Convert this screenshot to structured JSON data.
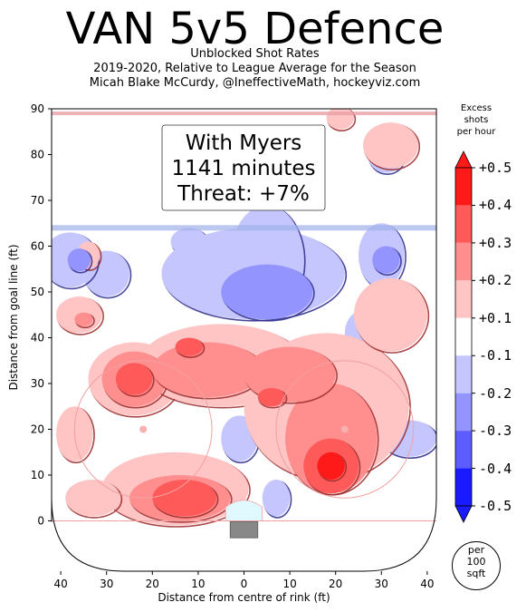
{
  "header": {
    "title": "VAN 5v5 Defence",
    "subtitle_lines": [
      "Unblocked Shot Rates",
      "2019-2020, Relative to League Average for the Season",
      "Micah Blake McCurdy, @IneffectiveMath, hockeyviz.com"
    ]
  },
  "chart_data": {
    "type": "heatmap",
    "xlabel": "Distance from centre of rink (ft)",
    "ylabel": "Distance from goal line (ft)",
    "xlim": [
      42,
      -42
    ],
    "ylim": [
      -11,
      90
    ],
    "x_ticks": [
      40,
      30,
      20,
      10,
      0,
      10,
      20,
      30,
      40
    ],
    "y_ticks": [
      0,
      10,
      20,
      30,
      40,
      50,
      60,
      70,
      80,
      90
    ],
    "annotation": {
      "line1": "With Myers",
      "line2": "1141 minutes",
      "line3": "Threat: +7%"
    },
    "colorbar": {
      "title_lines": [
        "Excess",
        "shots",
        "per hour"
      ],
      "labels": [
        "+0.5",
        "+0.4",
        "+0.3",
        "+0.2",
        "+0.1",
        "-0.1",
        "-0.2",
        "-0.3",
        "-0.4",
        "-0.5"
      ],
      "colors": [
        "#ff1a1a",
        "#ff5a5a",
        "#ff8f8f",
        "#ffc4c4",
        "#ffffff",
        "#c6c6ff",
        "#9494ff",
        "#5c5cff",
        "#1a1aff"
      ],
      "unit_lines": [
        "per",
        "100",
        "sqft"
      ]
    },
    "regions": [
      {
        "level": 0.2,
        "cx": 24,
        "cy": 31,
        "rx": 10,
        "ry": 8
      },
      {
        "level": 0.3,
        "cx": 24,
        "cy": 31,
        "rx": 7,
        "ry": 6
      },
      {
        "level": 0.4,
        "cx": 24,
        "cy": 31,
        "rx": 4,
        "ry": 3.5
      },
      {
        "level": 0.2,
        "cx": 5,
        "cy": 34,
        "rx": 18,
        "ry": 9
      },
      {
        "level": 0.3,
        "cx": 8,
        "cy": 33,
        "rx": 12,
        "ry": 6
      },
      {
        "level": 0.4,
        "cx": 12,
        "cy": 38,
        "rx": 3,
        "ry": 2
      },
      {
        "level": 0.2,
        "cx": -18,
        "cy": 25,
        "rx": 18,
        "ry": 16
      },
      {
        "level": 0.3,
        "cx": -19,
        "cy": 18,
        "rx": 10,
        "ry": 12
      },
      {
        "level": 0.3,
        "cx": -10,
        "cy": 32,
        "rx": 10,
        "ry": 6
      },
      {
        "level": 0.4,
        "cx": -19,
        "cy": 12,
        "rx": 6,
        "ry": 6
      },
      {
        "level": 0.5,
        "cx": -19,
        "cy": 12,
        "rx": 3,
        "ry": 3
      },
      {
        "level": 0.4,
        "cx": -6,
        "cy": 27,
        "rx": 3,
        "ry": 2
      },
      {
        "level": 0.2,
        "cx": 15,
        "cy": 7,
        "rx": 16,
        "ry": 8
      },
      {
        "level": 0.3,
        "cx": 14,
        "cy": 5,
        "rx": 11,
        "ry": 5
      },
      {
        "level": 0.4,
        "cx": 13,
        "cy": 5,
        "rx": 7,
        "ry": 4
      },
      {
        "level": 0.2,
        "cx": 33,
        "cy": 5,
        "rx": 6,
        "ry": 4
      },
      {
        "level": 0.2,
        "cx": 37,
        "cy": 19,
        "rx": 4,
        "ry": 6
      },
      {
        "level": 0.2,
        "cx": 36,
        "cy": 45,
        "rx": 5,
        "ry": 4
      },
      {
        "level": 0.3,
        "cx": 35,
        "cy": 44,
        "rx": 2,
        "ry": 1.5
      },
      {
        "level": 0.2,
        "cx": 34,
        "cy": 58,
        "rx": 2.5,
        "ry": 3
      },
      {
        "level": 0.2,
        "cx": -32,
        "cy": 45,
        "rx": 8,
        "ry": 8
      },
      {
        "level": 0.2,
        "cx": -32,
        "cy": 82,
        "rx": 6,
        "ry": 5
      },
      {
        "level": 0.2,
        "cx": -21,
        "cy": 88,
        "rx": 3,
        "ry": 2.5
      },
      {
        "level": -0.1,
        "cx": 30,
        "cy": 54,
        "rx": 5,
        "ry": 5
      },
      {
        "level": -0.1,
        "cx": 12,
        "cy": 61,
        "rx": 4,
        "ry": 3
      },
      {
        "level": -0.1,
        "cx": -2,
        "cy": 54,
        "rx": 20,
        "ry": 10
      },
      {
        "level": -0.2,
        "cx": -5,
        "cy": 50,
        "rx": 10,
        "ry": 6
      },
      {
        "level": -0.1,
        "cx": -5,
        "cy": 57,
        "rx": 8,
        "ry": 12
      },
      {
        "level": -0.1,
        "cx": -30,
        "cy": 58,
        "rx": 5,
        "ry": 7
      },
      {
        "level": -0.2,
        "cx": -31,
        "cy": 57,
        "rx": 3,
        "ry": 3
      },
      {
        "level": -0.1,
        "cx": -26,
        "cy": 41,
        "rx": 4,
        "ry": 5
      },
      {
        "level": -0.1,
        "cx": -36,
        "cy": 18,
        "rx": 6,
        "ry": 4
      },
      {
        "level": -0.1,
        "cx": 1,
        "cy": 18,
        "rx": 4,
        "ry": 5
      },
      {
        "level": -0.1,
        "cx": -7,
        "cy": 5,
        "rx": 3,
        "ry": 4
      },
      {
        "level": -0.1,
        "cx": -31,
        "cy": 80,
        "rx": 4,
        "ry": 4
      },
      {
        "level": -0.1,
        "cx": 38,
        "cy": 57,
        "rx": 6,
        "ry": 6
      },
      {
        "level": -0.2,
        "cx": 36,
        "cy": 57,
        "rx": 2.5,
        "ry": 2.5
      }
    ]
  }
}
